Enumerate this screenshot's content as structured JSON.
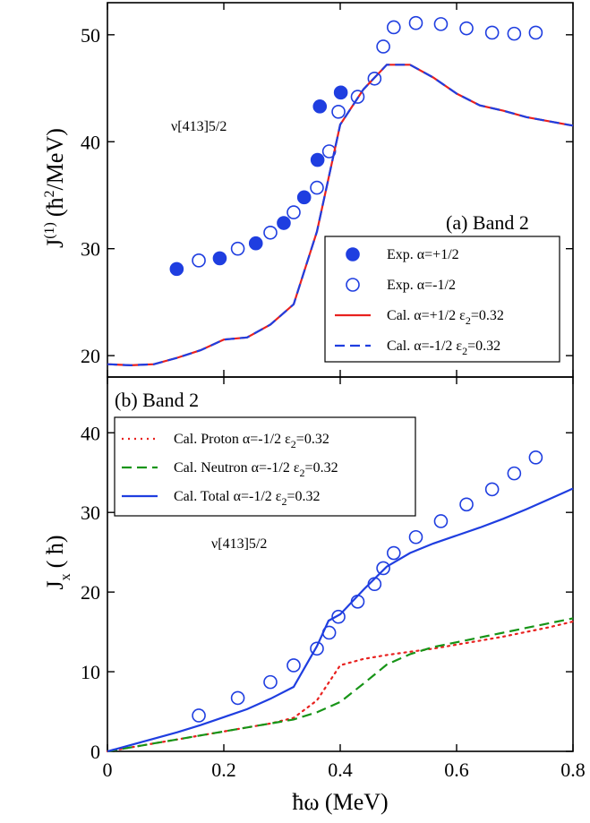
{
  "colors": {
    "red": "#e8211f",
    "blue": "#1f3ee0",
    "green": "#179417",
    "black": "#000000"
  },
  "x_axis_label": "ħω (MeV)",
  "x_ticks": [
    "0",
    "0.2",
    "0.4",
    "0.6",
    "0.8"
  ],
  "chart_data": [
    {
      "type": "scatter",
      "panel_label": "(a) Band 2",
      "ylabel_main": "J",
      "ylabel_sup": "(1)",
      "ylabel_unit_pre": "(ħ",
      "ylabel_unit_sup": "2",
      "ylabel_unit_post": "/MeV)",
      "annotation": "ν[413]5/2",
      "xlim": [
        0,
        0.8
      ],
      "ylim": [
        18,
        53
      ],
      "y_ticks": [
        20,
        30,
        40,
        50
      ],
      "legend_position": "bottom-right",
      "series": [
        {
          "name": "Exp. α=+1/2",
          "kind": "scatter-filled",
          "color": "blue",
          "x": [
            0.119,
            0.193,
            0.255,
            0.303,
            0.338,
            0.361,
            0.365,
            0.401
          ],
          "y": [
            28.1,
            29.1,
            30.5,
            32.4,
            34.8,
            38.3,
            43.3,
            44.6
          ]
        },
        {
          "name": "Exp. α=-1/2",
          "kind": "scatter-open",
          "color": "blue",
          "x": [
            0.157,
            0.224,
            0.28,
            0.32,
            0.36,
            0.381,
            0.397,
            0.43,
            0.459,
            0.474,
            0.492,
            0.53,
            0.573,
            0.617,
            0.661,
            0.699,
            0.736
          ],
          "y": [
            28.9,
            30.0,
            31.5,
            33.4,
            35.7,
            39.1,
            42.8,
            44.2,
            45.9,
            48.9,
            50.7,
            51.1,
            51.0,
            50.6,
            50.2,
            50.1,
            50.2
          ]
        },
        {
          "name": "Cal. α=+1/2 ε",
          "name_sub": "2",
          "name_post": "=0.32",
          "kind": "line-solid",
          "color": "red",
          "x": [
            0,
            0.04,
            0.08,
            0.12,
            0.16,
            0.2,
            0.24,
            0.28,
            0.32,
            0.36,
            0.4,
            0.44,
            0.48,
            0.52,
            0.56,
            0.6,
            0.64,
            0.68,
            0.72,
            0.76,
            0.8
          ],
          "y": [
            19.2,
            19.1,
            19.2,
            19.8,
            20.5,
            21.5,
            21.7,
            22.9,
            24.8,
            31.6,
            41.6,
            44.9,
            47.2,
            47.2,
            46.0,
            44.5,
            43.4,
            42.9,
            42.3,
            41.9,
            41.5
          ]
        },
        {
          "name": "Cal. α=-1/2 ε",
          "name_sub": "2",
          "name_post": "=0.32",
          "kind": "line-dashed",
          "color": "blue",
          "x": [
            0,
            0.04,
            0.08,
            0.12,
            0.16,
            0.2,
            0.24,
            0.28,
            0.32,
            0.36,
            0.4,
            0.44,
            0.48,
            0.52,
            0.56,
            0.6,
            0.64,
            0.68,
            0.72,
            0.76,
            0.8
          ],
          "y": [
            19.2,
            19.1,
            19.2,
            19.8,
            20.5,
            21.5,
            21.7,
            22.9,
            24.8,
            31.6,
            41.6,
            44.9,
            47.2,
            47.2,
            46.0,
            44.5,
            43.4,
            42.9,
            42.3,
            41.9,
            41.5
          ]
        }
      ]
    },
    {
      "type": "line",
      "panel_label": "(b) Band 2",
      "ylabel_main": "J",
      "ylabel_sub": "x",
      "ylabel_unit": "( ħ)",
      "annotation": "ν[413]5/2",
      "xlim": [
        0,
        0.8
      ],
      "ylim": [
        0,
        47
      ],
      "y_ticks": [
        0,
        10,
        20,
        30,
        40
      ],
      "legend_position": "top-left",
      "series": [
        {
          "name": "Cal. Proton α=-1/2 ε",
          "name_sub": "2",
          "name_post": "=0.32",
          "kind": "line-dotted",
          "color": "red",
          "x": [
            0,
            0.04,
            0.08,
            0.12,
            0.16,
            0.2,
            0.24,
            0.28,
            0.32,
            0.36,
            0.4,
            0.44,
            0.48,
            0.52,
            0.56,
            0.6,
            0.64,
            0.68,
            0.72,
            0.76,
            0.8
          ],
          "y": [
            0,
            0.5,
            1.0,
            1.5,
            2.0,
            2.5,
            3.0,
            3.5,
            4.2,
            6.4,
            10.8,
            11.6,
            12.1,
            12.5,
            12.9,
            13.4,
            13.9,
            14.4,
            15.0,
            15.6,
            16.3
          ]
        },
        {
          "name": "Cal. Neutron α=-1/2 ε",
          "name_sub": "2",
          "name_post": "=0.32",
          "kind": "line-dashed",
          "color": "green",
          "x": [
            0,
            0.04,
            0.08,
            0.12,
            0.16,
            0.2,
            0.24,
            0.28,
            0.32,
            0.36,
            0.4,
            0.44,
            0.48,
            0.52,
            0.56,
            0.6,
            0.64,
            0.68,
            0.72,
            0.76,
            0.8
          ],
          "y": [
            0,
            0.5,
            1.0,
            1.5,
            2.0,
            2.5,
            3.0,
            3.5,
            4.0,
            4.9,
            6.2,
            8.5,
            10.9,
            12.2,
            13.1,
            13.7,
            14.3,
            14.9,
            15.5,
            16.1,
            16.7
          ]
        },
        {
          "name": "Cal. Total α=-1/2 ε",
          "name_sub": "2",
          "name_post": "=0.32",
          "kind": "line-solid",
          "color": "blue",
          "x": [
            0,
            0.04,
            0.08,
            0.12,
            0.16,
            0.2,
            0.24,
            0.28,
            0.32,
            0.36,
            0.38,
            0.4,
            0.44,
            0.48,
            0.52,
            0.56,
            0.6,
            0.64,
            0.68,
            0.72,
            0.76,
            0.8
          ],
          "y": [
            0,
            0.8,
            1.6,
            2.4,
            3.3,
            4.3,
            5.3,
            6.6,
            8.1,
            13.2,
            16.4,
            17.2,
            20.3,
            23.2,
            24.9,
            26.1,
            27.1,
            28.1,
            29.2,
            30.4,
            31.7,
            33.0
          ]
        },
        {
          "name": "Exp.",
          "kind": "scatter-open",
          "color": "blue",
          "in_legend": false,
          "x": [
            0.157,
            0.224,
            0.28,
            0.32,
            0.36,
            0.381,
            0.397,
            0.43,
            0.459,
            0.474,
            0.492,
            0.53,
            0.573,
            0.617,
            0.661,
            0.699,
            0.736
          ],
          "y": [
            4.5,
            6.7,
            8.7,
            10.8,
            12.9,
            14.9,
            16.9,
            18.8,
            21.0,
            23.0,
            24.9,
            26.9,
            28.9,
            31.0,
            32.9,
            34.9,
            36.9
          ]
        }
      ]
    }
  ]
}
